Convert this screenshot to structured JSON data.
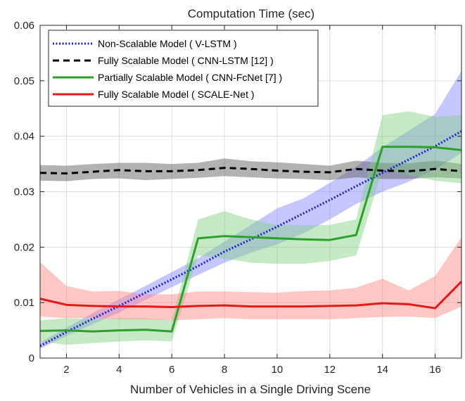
{
  "chart_data": {
    "type": "line",
    "title": "Computation Time (sec)",
    "xlabel": "Number of Vehicles in a Single Driving Scene",
    "ylabel": "",
    "xlim": [
      1,
      17
    ],
    "ylim": [
      0,
      0.06
    ],
    "x_ticks": [
      2,
      4,
      6,
      8,
      10,
      12,
      14,
      16
    ],
    "x_tick_labels": [
      "2",
      "4",
      "6",
      "8",
      "10",
      "12",
      "14",
      "16"
    ],
    "y_ticks": [
      0,
      0.01,
      0.02,
      0.03,
      0.04,
      0.05,
      0.06
    ],
    "y_tick_labels": [
      "0",
      "0.01",
      "0.02",
      "0.03",
      "0.04",
      "0.05",
      "0.06"
    ],
    "grid": true,
    "legend_position": "top-left",
    "x": [
      1,
      2,
      3,
      4,
      5,
      6,
      7,
      8,
      9,
      10,
      11,
      12,
      13,
      14,
      15,
      16,
      17
    ],
    "series": [
      {
        "name": "Non-Scalable Model ( V-LSTM )",
        "color": "#1f1fd6",
        "band_color": "#8080ff",
        "line_style": "dotted",
        "values": [
          0.0022,
          0.0047,
          0.0071,
          0.0094,
          0.0118,
          0.0142,
          0.0166,
          0.0192,
          0.0214,
          0.0237,
          0.0261,
          0.0285,
          0.031,
          0.0334,
          0.0358,
          0.0382,
          0.0409
        ],
        "upper": [
          0.0028,
          0.0055,
          0.0081,
          0.0106,
          0.013,
          0.0155,
          0.018,
          0.021,
          0.024,
          0.027,
          0.0288,
          0.0316,
          0.0345,
          0.038,
          0.041,
          0.044,
          0.0518
        ],
        "lower": [
          0.0017,
          0.004,
          0.0061,
          0.0082,
          0.0105,
          0.0128,
          0.015,
          0.0172,
          0.019,
          0.0205,
          0.0225,
          0.025,
          0.0278,
          0.03,
          0.0318,
          0.034,
          0.037
        ]
      },
      {
        "name": "Fully Scalable Model ( CNN-LSTM [12] )",
        "color": "#000000",
        "band_color": "#555555",
        "line_style": "dashed",
        "values": [
          0.0334,
          0.0333,
          0.0336,
          0.0339,
          0.0337,
          0.0337,
          0.0339,
          0.0343,
          0.0341,
          0.0338,
          0.0336,
          0.0335,
          0.0341,
          0.0338,
          0.0337,
          0.0341,
          0.0337
        ],
        "upper": [
          0.0348,
          0.0347,
          0.035,
          0.0352,
          0.0352,
          0.035,
          0.0352,
          0.036,
          0.0355,
          0.0353,
          0.035,
          0.0347,
          0.0356,
          0.0352,
          0.0351,
          0.0356,
          0.035
        ],
        "lower": [
          0.032,
          0.0319,
          0.0323,
          0.0324,
          0.0321,
          0.0323,
          0.0325,
          0.0328,
          0.0326,
          0.0324,
          0.0323,
          0.0321,
          0.0326,
          0.0323,
          0.0323,
          0.0326,
          0.0324
        ]
      },
      {
        "name": "Partially Scalable Model ( CNN-FcNet [7] )",
        "color": "#2ca02c",
        "band_color": "#7fcf7f",
        "line_style": "solid",
        "values": [
          0.0049,
          0.005,
          0.0048,
          0.005,
          0.0051,
          0.0048,
          0.0216,
          0.022,
          0.0218,
          0.0216,
          0.0214,
          0.0213,
          0.0222,
          0.0381,
          0.0381,
          0.038,
          0.0375
        ],
        "upper": [
          0.0068,
          0.0072,
          0.007,
          0.0072,
          0.0072,
          0.0068,
          0.025,
          0.0265,
          0.025,
          0.024,
          0.024,
          0.024,
          0.025,
          0.0438,
          0.0445,
          0.0435,
          0.0438
        ],
        "lower": [
          0.003,
          0.0024,
          0.0027,
          0.003,
          0.0032,
          0.003,
          0.0185,
          0.018,
          0.0172,
          0.017,
          0.017,
          0.0175,
          0.0185,
          0.034,
          0.033,
          0.032,
          0.0315
        ]
      },
      {
        "name": "Fully Scalable Model ( SCALE-Net )",
        "color": "#e61919",
        "band_color": "#ff8080",
        "line_style": "solid",
        "values": [
          0.0107,
          0.0096,
          0.0094,
          0.0093,
          0.0093,
          0.0092,
          0.0094,
          0.0095,
          0.0093,
          0.0093,
          0.0093,
          0.0094,
          0.0095,
          0.0099,
          0.0097,
          0.009,
          0.0138
        ],
        "upper": [
          0.0173,
          0.013,
          0.012,
          0.0121,
          0.0115,
          0.0115,
          0.012,
          0.012,
          0.0119,
          0.0118,
          0.0121,
          0.0122,
          0.0127,
          0.0143,
          0.0122,
          0.0148,
          0.0218
        ],
        "lower": [
          0.0075,
          0.0072,
          0.0072,
          0.007,
          0.007,
          0.0068,
          0.007,
          0.0072,
          0.007,
          0.007,
          0.007,
          0.007,
          0.0072,
          0.0074,
          0.0075,
          0.0072,
          0.0093
        ]
      }
    ]
  }
}
